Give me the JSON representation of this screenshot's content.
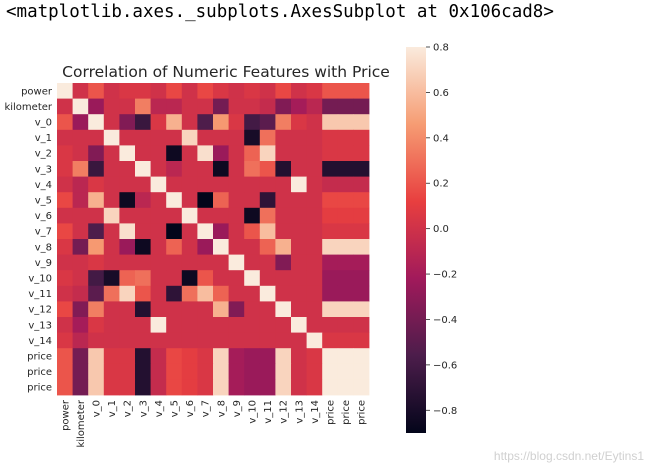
{
  "repr_text": "<matplotlib.axes._subplots.AxesSubplot at 0x106cad8>",
  "watermark": "https://blog.csdn.net/Eytins1",
  "chart_data": {
    "type": "heatmap",
    "title": "Correlation of Numeric Features with Price",
    "row_labels": [
      "power",
      "kilometer",
      "v_0",
      "v_1",
      "v_2",
      "v_3",
      "v_4",
      "v_5",
      "v_6",
      "v_7",
      "v_8",
      "v_9",
      "v_10",
      "v_11",
      "v_12",
      "v_13",
      "v_14",
      "price",
      "price",
      "price"
    ],
    "col_labels": [
      "power",
      "kilometer",
      "v_0",
      "v_1",
      "v_2",
      "v_3",
      "v_4",
      "v_5",
      "v_6",
      "v_7",
      "v_8",
      "v_9",
      "v_10",
      "v_11",
      "v_12",
      "v_13",
      "v_14",
      "price",
      "price",
      "price"
    ],
    "values": [
      [
        1.0,
        0.0,
        0.2,
        0.0,
        0.05,
        0.05,
        0.0,
        0.15,
        0.0,
        0.15,
        0.05,
        0.0,
        0.05,
        0.0,
        0.15,
        0.0,
        0.05,
        0.2,
        0.2,
        0.2
      ],
      [
        0.0,
        1.0,
        -0.25,
        0.0,
        0.0,
        0.35,
        -0.1,
        -0.1,
        0.0,
        0.0,
        -0.4,
        0.0,
        0.0,
        -0.05,
        -0.35,
        -0.2,
        -0.1,
        -0.4,
        -0.4,
        -0.4
      ],
      [
        0.2,
        -0.25,
        1.0,
        0.0,
        -0.35,
        -0.65,
        0.05,
        0.55,
        0.0,
        -0.55,
        0.45,
        0.05,
        -0.6,
        -0.5,
        0.35,
        0.05,
        0.0,
        0.65,
        0.65,
        0.65
      ],
      [
        0.0,
        0.0,
        0.0,
        1.0,
        0.0,
        0.0,
        0.0,
        0.0,
        0.7,
        0.0,
        0.0,
        0.0,
        -0.8,
        0.3,
        0.0,
        0.0,
        0.0,
        0.05,
        0.05,
        0.05
      ],
      [
        0.05,
        0.0,
        -0.35,
        0.0,
        1.0,
        0.0,
        0.0,
        -0.85,
        0.0,
        0.75,
        -0.25,
        0.0,
        0.25,
        0.7,
        0.0,
        0.0,
        0.0,
        0.05,
        0.05,
        0.05
      ],
      [
        0.05,
        0.35,
        -0.65,
        0.0,
        0.0,
        1.0,
        0.0,
        -0.1,
        0.0,
        0.0,
        -0.85,
        0.0,
        0.3,
        0.2,
        -0.75,
        0.0,
        0.0,
        -0.75,
        -0.75,
        -0.75
      ],
      [
        0.0,
        -0.1,
        0.05,
        0.0,
        0.0,
        0.0,
        1.0,
        0.0,
        0.0,
        0.0,
        0.0,
        0.0,
        0.0,
        0.0,
        0.0,
        0.85,
        0.0,
        -0.05,
        -0.05,
        -0.05
      ],
      [
        0.15,
        -0.1,
        0.55,
        0.0,
        -0.85,
        -0.1,
        0.0,
        1.0,
        0.0,
        -0.9,
        0.25,
        0.0,
        0.0,
        -0.7,
        0.0,
        0.0,
        0.0,
        0.15,
        0.15,
        0.15
      ],
      [
        0.0,
        0.0,
        0.0,
        0.7,
        0.0,
        0.0,
        0.0,
        0.0,
        1.0,
        0.0,
        0.0,
        0.0,
        -0.85,
        0.3,
        0.0,
        0.0,
        0.0,
        0.1,
        0.1,
        0.1
      ],
      [
        0.15,
        0.0,
        -0.55,
        0.0,
        0.75,
        0.0,
        0.0,
        -0.9,
        0.0,
        1.0,
        -0.25,
        0.0,
        0.2,
        0.6,
        0.0,
        0.0,
        0.0,
        0.05,
        0.05,
        0.05
      ],
      [
        0.05,
        -0.4,
        0.45,
        0.0,
        -0.25,
        -0.85,
        0.0,
        0.25,
        0.0,
        -0.25,
        1.0,
        0.0,
        0.0,
        0.25,
        0.55,
        0.0,
        0.0,
        0.7,
        0.7,
        0.7
      ],
      [
        0.0,
        0.0,
        0.05,
        0.0,
        0.0,
        0.0,
        0.0,
        0.0,
        0.0,
        0.0,
        0.0,
        1.0,
        0.0,
        0.0,
        -0.35,
        0.0,
        0.0,
        -0.2,
        -0.2,
        -0.2
      ],
      [
        0.05,
        0.0,
        -0.6,
        -0.8,
        0.25,
        0.3,
        0.0,
        0.0,
        -0.85,
        0.2,
        0.0,
        0.0,
        1.0,
        0.0,
        0.0,
        0.0,
        0.0,
        -0.25,
        -0.25,
        -0.25
      ],
      [
        0.0,
        -0.05,
        -0.5,
        0.3,
        0.7,
        0.2,
        0.0,
        -0.7,
        0.3,
        0.6,
        0.25,
        0.0,
        0.0,
        1.0,
        0.0,
        0.0,
        0.0,
        -0.25,
        -0.25,
        -0.25
      ],
      [
        0.15,
        -0.35,
        0.35,
        0.0,
        0.0,
        -0.75,
        0.0,
        0.0,
        0.0,
        0.0,
        0.55,
        -0.35,
        0.0,
        0.0,
        1.0,
        0.0,
        0.0,
        0.7,
        0.7,
        0.7
      ],
      [
        0.0,
        -0.2,
        0.05,
        0.0,
        0.0,
        0.0,
        0.85,
        0.0,
        0.0,
        0.0,
        0.0,
        0.0,
        0.0,
        0.0,
        0.0,
        1.0,
        0.0,
        0.0,
        0.0,
        0.0
      ],
      [
        0.05,
        -0.1,
        0.0,
        0.0,
        0.0,
        0.0,
        0.0,
        0.0,
        0.0,
        0.0,
        0.0,
        0.0,
        0.0,
        0.0,
        0.0,
        0.0,
        1.0,
        0.05,
        0.05,
        0.05
      ],
      [
        0.2,
        -0.4,
        0.65,
        0.05,
        0.05,
        -0.75,
        -0.05,
        0.15,
        0.1,
        0.05,
        0.7,
        -0.2,
        -0.25,
        -0.25,
        0.7,
        0.0,
        0.05,
        1.0,
        1.0,
        1.0
      ],
      [
        0.2,
        -0.4,
        0.65,
        0.05,
        0.05,
        -0.75,
        -0.05,
        0.15,
        0.1,
        0.05,
        0.7,
        -0.2,
        -0.25,
        -0.25,
        0.7,
        0.0,
        0.05,
        1.0,
        1.0,
        1.0
      ],
      [
        0.2,
        -0.4,
        0.65,
        0.05,
        0.05,
        -0.75,
        -0.05,
        0.15,
        0.1,
        0.05,
        0.7,
        -0.2,
        -0.25,
        -0.25,
        0.7,
        0.0,
        0.05,
        1.0,
        1.0,
        1.0
      ]
    ],
    "colorbar": {
      "ticks": [
        "0.8",
        "0.6",
        "0.4",
        "0.2",
        "0.0",
        "−0.2",
        "−0.4",
        "−0.6",
        "−0.8"
      ],
      "tick_values": [
        0.8,
        0.6,
        0.4,
        0.2,
        0.0,
        -0.2,
        -0.4,
        -0.6,
        -0.8
      ],
      "vmin": -0.9,
      "vmax": 0.8
    },
    "colormap": "rocket",
    "colormap_stops": [
      "#03051a",
      "#4c1d4b",
      "#a11a5b",
      "#e83f3f",
      "#f69c73",
      "#faebdd"
    ]
  }
}
